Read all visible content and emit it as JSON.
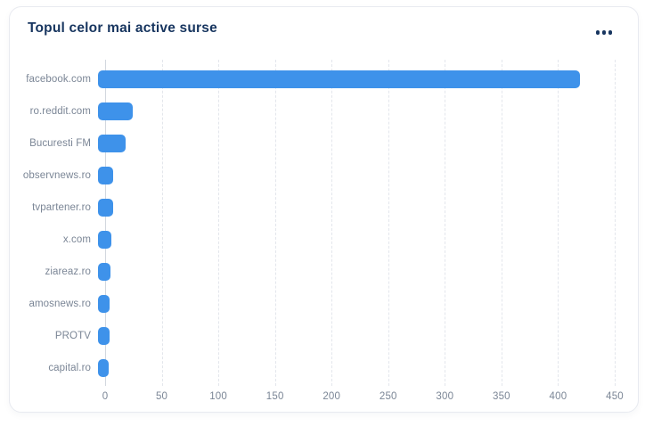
{
  "card": {
    "title": "Topul celor mai active surse",
    "menu_icon": "ellipsis-icon"
  },
  "colors": {
    "bar": "#3e92ea",
    "title": "#17355f",
    "labels": "#7b8696",
    "gridlines": "#e3e6ec",
    "axis_line": "#d2d7df",
    "card_border": "#e8eaf0"
  },
  "chart_data": {
    "type": "bar",
    "orientation": "horizontal",
    "title": "Topul celor mai active surse",
    "categories": [
      "facebook.com",
      "ro.reddit.com",
      "Bucuresti FM",
      "observnews.ro",
      "tvpartener.ro",
      "x.com",
      "ziareaz.ro",
      "amosnews.ro",
      "PROTV",
      "capital.ro"
    ],
    "values": [
      420,
      30,
      24,
      13,
      13,
      12,
      11,
      10,
      10,
      9
    ],
    "xlabel": "",
    "ylabel": "",
    "xlim": [
      0,
      450
    ],
    "xticks": [
      0,
      50,
      100,
      150,
      200,
      250,
      300,
      350,
      400,
      450
    ],
    "grid": "vertical-dashed",
    "legend": "none",
    "bar_color": "#3e92ea"
  }
}
